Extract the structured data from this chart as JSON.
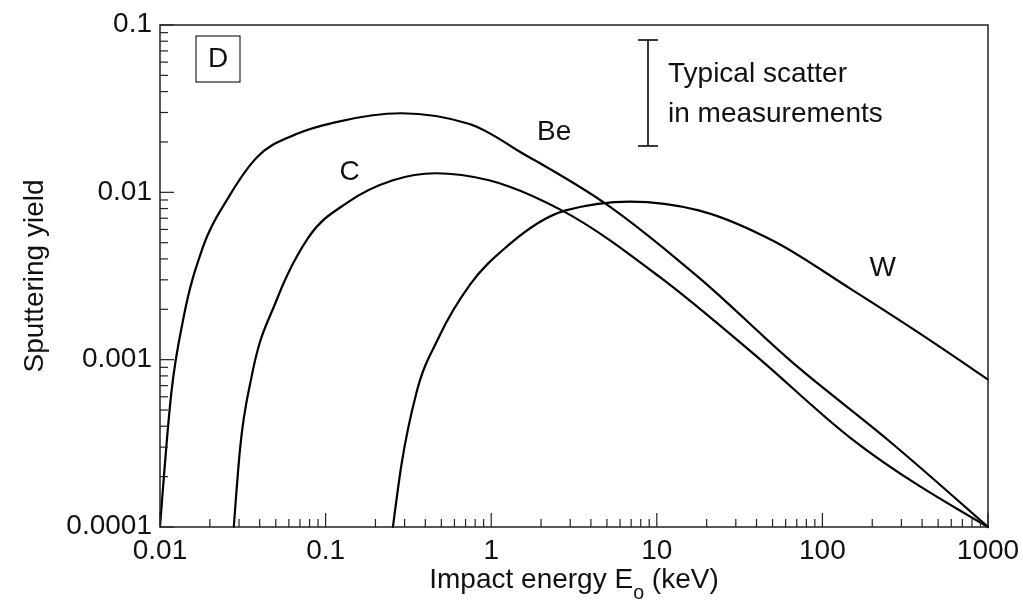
{
  "chart_data": {
    "type": "line",
    "xlabel": "Impact energy E$_{o}$ (keV)",
    "ylabel": "Sputtering yield",
    "log": "xy",
    "grid": false,
    "marker": "none",
    "line_style": "solid",
    "xlim": [
      0.01,
      1000
    ],
    "ylim": [
      0.0001,
      0.1
    ],
    "xticks": [
      0.01,
      {
        "value": 0.02,
        "label": null
      },
      {
        "value": 0.03,
        "label": null
      },
      {
        "value": 0.04,
        "label": null
      },
      {
        "value": 0.05,
        "label": null
      },
      {
        "value": 0.06,
        "label": null
      },
      {
        "value": 0.07,
        "label": null
      },
      {
        "value": 0.08,
        "label": null
      },
      {
        "value": 0.09,
        "label": null
      },
      0.1,
      {
        "value": 0.2,
        "label": null
      },
      {
        "value": 0.3,
        "label": null
      },
      {
        "value": 0.4,
        "label": null
      },
      {
        "value": 0.5,
        "label": null
      },
      {
        "value": 0.6,
        "label": null
      },
      {
        "value": 0.7,
        "label": null
      },
      {
        "value": 0.8,
        "label": null
      },
      {
        "value": 0.9,
        "label": null
      },
      1,
      {
        "value": 2,
        "label": null
      },
      {
        "value": 3,
        "label": null
      },
      {
        "value": 4,
        "label": null
      },
      {
        "value": 5,
        "label": null
      },
      {
        "value": 6,
        "label": null
      },
      {
        "value": 7,
        "label": null
      },
      {
        "value": 8,
        "label": null
      },
      {
        "value": 9,
        "label": null
      },
      10,
      {
        "value": 20,
        "label": null
      },
      {
        "value": 30,
        "label": null
      },
      {
        "value": 40,
        "label": null
      },
      {
        "value": 50,
        "label": null
      },
      {
        "value": 60,
        "label": null
      },
      {
        "value": 70,
        "label": null
      },
      {
        "value": 80,
        "label": null
      },
      {
        "value": 90,
        "label": null
      },
      100,
      {
        "value": 200,
        "label": null
      },
      {
        "value": 300,
        "label": null
      },
      {
        "value": 400,
        "label": null
      },
      {
        "value": 500,
        "label": null
      },
      {
        "value": 600,
        "label": null
      },
      {
        "value": 700,
        "label": null
      },
      {
        "value": 800,
        "label": null
      },
      {
        "value": 900,
        "label": null
      },
      1000
    ],
    "yticks": [
      0.0001,
      {
        "value": 0.0002,
        "label": null
      },
      {
        "value": 0.0003,
        "label": null
      },
      {
        "value": 0.0004,
        "label": null
      },
      {
        "value": 0.0005,
        "label": null
      },
      {
        "value": 0.0006,
        "label": null
      },
      {
        "value": 0.0007,
        "label": null
      },
      {
        "value": 0.0008,
        "label": null
      },
      {
        "value": 0.0009,
        "label": null
      },
      0.001,
      {
        "value": 0.002,
        "label": null
      },
      {
        "value": 0.003,
        "label": null
      },
      {
        "value": 0.004,
        "label": null
      },
      {
        "value": 0.005,
        "label": null
      },
      {
        "value": 0.006,
        "label": null
      },
      {
        "value": 0.007,
        "label": null
      },
      {
        "value": 0.008,
        "label": null
      },
      {
        "value": 0.009,
        "label": null
      },
      0.01,
      {
        "value": 0.02,
        "label": null
      },
      {
        "value": 0.03,
        "label": null
      },
      {
        "value": 0.04,
        "label": null
      },
      {
        "value": 0.05,
        "label": null
      },
      {
        "value": 0.06,
        "label": null
      },
      {
        "value": 0.07,
        "label": null
      },
      {
        "value": 0.08,
        "label": null
      },
      {
        "value": 0.09,
        "label": null
      },
      0.1
    ],
    "series": [
      {
        "name": "Be",
        "color": "#000000",
        "x": [
          0.01,
          0.0117,
          0.0139,
          0.0183,
          0.0257,
          0.038,
          0.0667,
          0.116,
          0.286,
          0.74,
          1.58,
          4.78,
          17.9,
          67,
          250,
          1000
        ],
        "values": [
          0.0001,
          0.00063,
          0.0018,
          0.0048,
          0.0092,
          0.016,
          0.0223,
          0.0263,
          0.0297,
          0.0256,
          0.0169,
          0.0087,
          0.0031,
          0.00095,
          0.00033,
          0.0001
        ]
      },
      {
        "name": "C",
        "color": "#000000",
        "x": [
          0.0279,
          0.0304,
          0.036,
          0.0504,
          0.079,
          0.136,
          0.255,
          0.46,
          0.97,
          2.67,
          10.5,
          39.4,
          148,
          1000
        ],
        "values": [
          0.0001,
          0.00029,
          0.00082,
          0.00225,
          0.0054,
          0.0087,
          0.0118,
          0.013,
          0.0118,
          0.0078,
          0.0031,
          0.00106,
          0.00034,
          0.0001
        ]
      },
      {
        "name": "W",
        "color": "#000000",
        "x": [
          0.255,
          0.286,
          0.353,
          0.486,
          0.743,
          1.26,
          2.82,
          6.9,
          17.9,
          51,
          148,
          425,
          1000
        ],
        "values": [
          0.0001,
          0.00023,
          0.00063,
          0.00138,
          0.0028,
          0.0048,
          0.0078,
          0.0088,
          0.0078,
          0.0051,
          0.00265,
          0.00135,
          0.00076
        ]
      }
    ],
    "annotations": [
      "D",
      "Typical scatter\nin measurements"
    ]
  }
}
